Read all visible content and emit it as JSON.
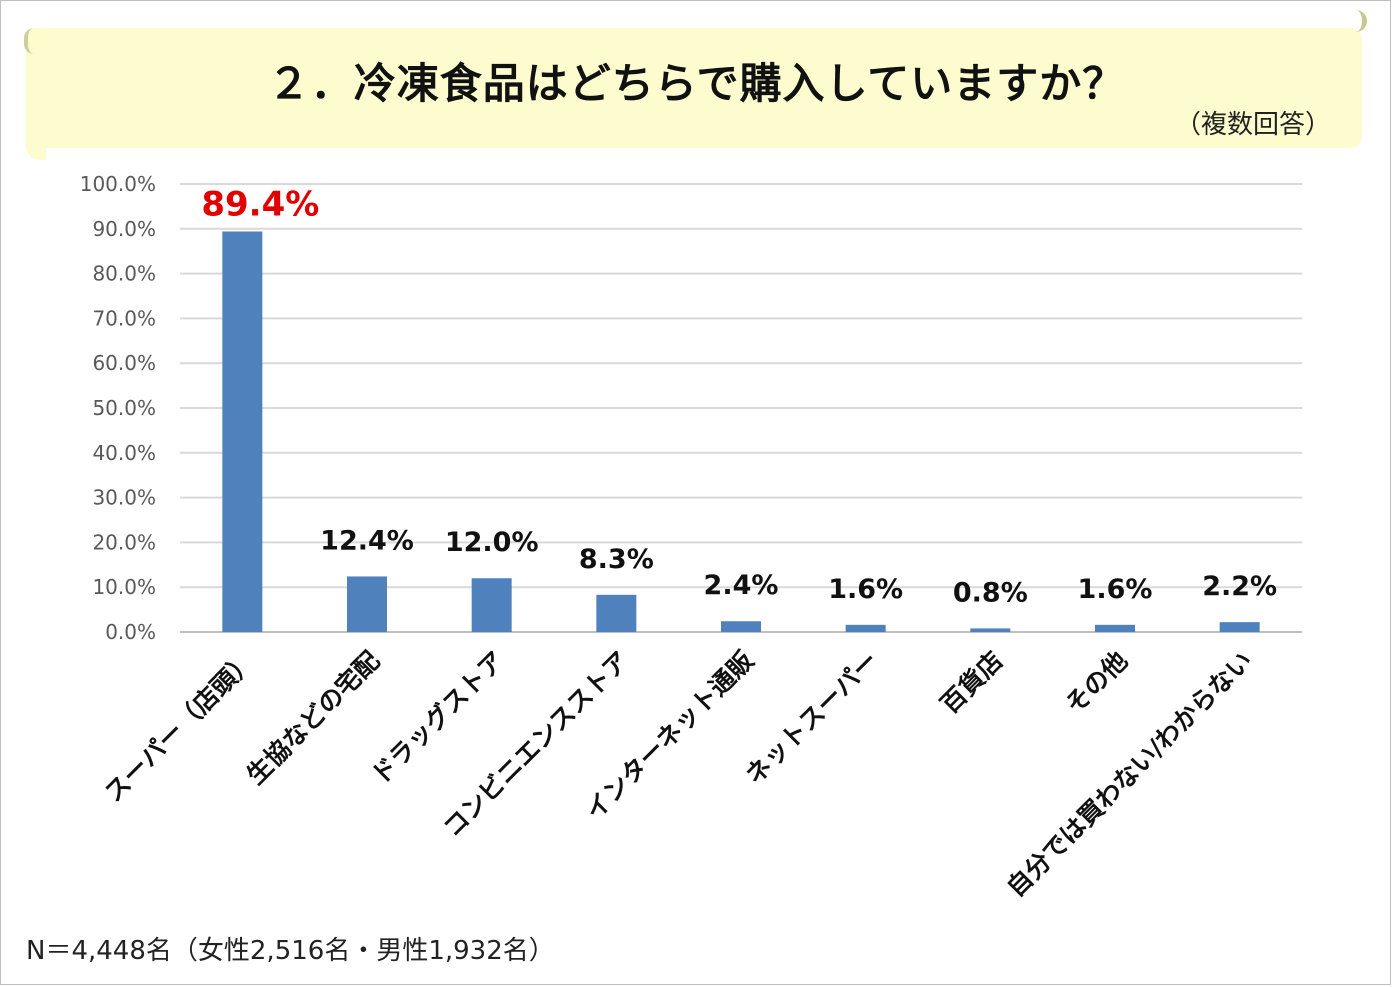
{
  "title": "２．冷凍食品はどちらで購入していますか？",
  "subtitle": "（複数回答）",
  "footer_note": "N＝4,448名（女性2,516名・男性1,932名）",
  "colors": {
    "bar": "#4f81bd",
    "highlight_label": "#e00000",
    "banner": "#fdfccf",
    "grid": "#d9d9d9"
  },
  "chart_data": {
    "type": "bar",
    "categories": [
      "スーパー（店頭）",
      "生協などの宅配",
      "ドラッグストア",
      "コンビニエンスストア",
      "インターネット通販",
      "ネットスーパー",
      "百貨店",
      "その他",
      "自分では買わない/わからない"
    ],
    "values": [
      89.4,
      12.4,
      12.0,
      8.3,
      2.4,
      1.6,
      0.8,
      1.6,
      2.2
    ],
    "data_labels": [
      "89.4%",
      "12.4%",
      "12.0%",
      "8.3%",
      "2.4%",
      "1.6%",
      "0.8%",
      "1.6%",
      "2.2%"
    ],
    "highlight_index": 0,
    "ylim": [
      0,
      100
    ],
    "yticks": [
      0,
      10,
      20,
      30,
      40,
      50,
      60,
      70,
      80,
      90,
      100
    ],
    "ytick_labels": [
      "0.0%",
      "10.0%",
      "20.0%",
      "30.0%",
      "40.0%",
      "50.0%",
      "60.0%",
      "70.0%",
      "80.0%",
      "90.0%",
      "100.0%"
    ],
    "grid": true,
    "legend": false
  }
}
